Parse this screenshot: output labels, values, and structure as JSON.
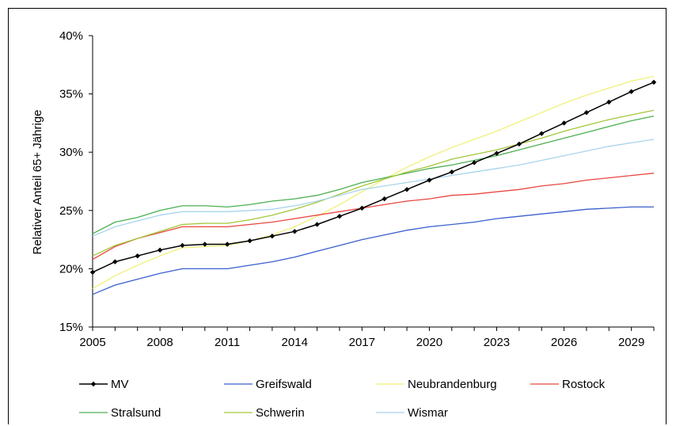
{
  "chart_data": {
    "type": "line",
    "title": "",
    "xlabel": "",
    "ylabel": "Relativer Anteil 65+ Jährige",
    "x": [
      2005,
      2006,
      2007,
      2008,
      2009,
      2010,
      2011,
      2012,
      2013,
      2014,
      2015,
      2016,
      2017,
      2018,
      2019,
      2020,
      2021,
      2022,
      2023,
      2024,
      2025,
      2026,
      2027,
      2028,
      2029,
      2030
    ],
    "xticks": [
      "2005",
      "2008",
      "2011",
      "2014",
      "2017",
      "2020",
      "2023",
      "2026",
      "2029"
    ],
    "yticks": [
      "15%",
      "20%",
      "25%",
      "30%",
      "35%",
      "40%"
    ],
    "ylim": [
      15,
      40
    ],
    "xlim": [
      2005,
      2030
    ],
    "grid": false,
    "legend_position": "bottom",
    "series": [
      {
        "name": "MV",
        "color": "#000000",
        "markers": true,
        "values": [
          19.7,
          20.6,
          21.1,
          21.6,
          22.0,
          22.1,
          22.1,
          22.4,
          22.8,
          23.2,
          23.8,
          24.5,
          25.2,
          26.0,
          26.8,
          27.6,
          28.3,
          29.1,
          29.9,
          30.7,
          31.6,
          32.5,
          33.4,
          34.3,
          35.2,
          36.0
        ]
      },
      {
        "name": "Greifswald",
        "color": "#3a5fcd",
        "markers": false,
        "values": [
          17.8,
          18.6,
          19.1,
          19.6,
          20.0,
          20.0,
          20.0,
          20.3,
          20.6,
          21.0,
          21.5,
          22.0,
          22.5,
          22.9,
          23.3,
          23.6,
          23.8,
          24.0,
          24.3,
          24.5,
          24.7,
          24.9,
          25.1,
          25.2,
          25.3,
          25.3
        ]
      },
      {
        "name": "Neubrandenburg",
        "color": "#f0f07a",
        "markers": false,
        "values": [
          18.3,
          19.4,
          20.3,
          21.1,
          21.8,
          21.9,
          22.0,
          22.4,
          22.9,
          23.6,
          24.5,
          25.5,
          26.6,
          27.7,
          28.7,
          29.6,
          30.4,
          31.1,
          31.8,
          32.6,
          33.4,
          34.2,
          34.9,
          35.5,
          36.1,
          36.5
        ]
      },
      {
        "name": "Rostock",
        "color": "#e8473f",
        "markers": false,
        "values": [
          20.8,
          21.9,
          22.6,
          23.1,
          23.6,
          23.6,
          23.6,
          23.8,
          24.0,
          24.3,
          24.6,
          24.9,
          25.2,
          25.5,
          25.8,
          26.0,
          26.3,
          26.4,
          26.6,
          26.8,
          27.1,
          27.3,
          27.6,
          27.8,
          28.0,
          28.2
        ]
      },
      {
        "name": "Stralsund",
        "color": "#4caf50",
        "markers": false,
        "values": [
          23.0,
          24.0,
          24.4,
          25.0,
          25.4,
          25.4,
          25.3,
          25.5,
          25.8,
          26.0,
          26.3,
          26.8,
          27.4,
          27.8,
          28.2,
          28.6,
          28.9,
          29.3,
          29.7,
          30.2,
          30.7,
          31.2,
          31.7,
          32.2,
          32.7,
          33.1
        ]
      },
      {
        "name": "Schwerin",
        "color": "#a4c639",
        "markers": false,
        "values": [
          21.1,
          22.0,
          22.6,
          23.2,
          23.8,
          23.9,
          23.9,
          24.2,
          24.6,
          25.1,
          25.7,
          26.4,
          27.1,
          27.7,
          28.3,
          28.8,
          29.4,
          29.8,
          30.2,
          30.7,
          31.2,
          31.8,
          32.3,
          32.8,
          33.2,
          33.6
        ]
      },
      {
        "name": "Wismar",
        "color": "#a8d4ec",
        "markers": false,
        "values": [
          22.8,
          23.6,
          24.1,
          24.6,
          24.9,
          24.9,
          24.9,
          25.0,
          25.1,
          25.4,
          25.8,
          26.3,
          26.8,
          27.1,
          27.4,
          27.7,
          28.0,
          28.3,
          28.6,
          28.9,
          29.3,
          29.7,
          30.1,
          30.5,
          30.8,
          31.1
        ]
      }
    ]
  }
}
